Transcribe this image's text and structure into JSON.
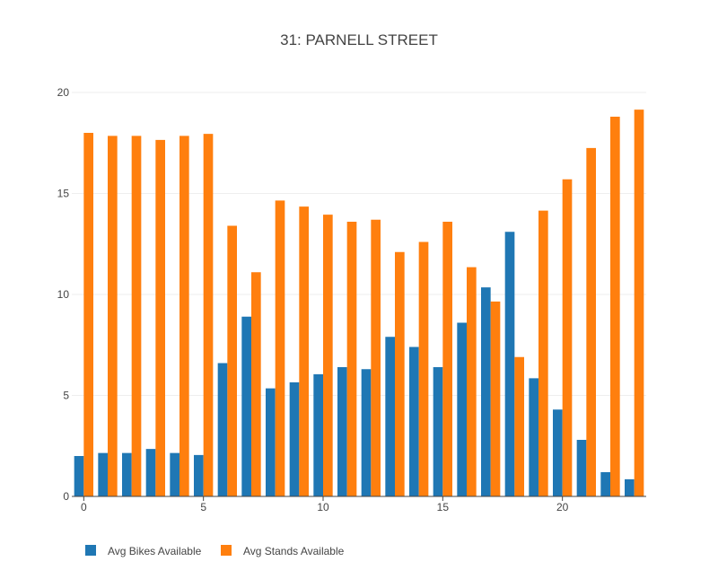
{
  "chart_data": {
    "type": "bar",
    "title": "31: PARNELL STREET",
    "xlabel": "",
    "ylabel": "",
    "x": [
      0,
      1,
      2,
      3,
      4,
      5,
      6,
      7,
      8,
      9,
      10,
      11,
      12,
      13,
      14,
      15,
      16,
      17,
      18,
      19,
      20,
      21,
      22,
      23
    ],
    "xticks": [
      0,
      5,
      10,
      15,
      20
    ],
    "yticks": [
      0,
      5,
      10,
      15,
      20
    ],
    "xlim": [
      -0.5,
      23.5
    ],
    "ylim": [
      0,
      20
    ],
    "grid": true,
    "legend_position": "bottom-left",
    "series": [
      {
        "name": "Avg Bikes Available",
        "color": "#1f77b4",
        "values": [
          2.0,
          2.15,
          2.15,
          2.35,
          2.15,
          2.05,
          6.6,
          8.9,
          5.35,
          5.65,
          6.05,
          6.4,
          6.3,
          7.9,
          7.4,
          6.4,
          8.6,
          10.35,
          13.1,
          5.85,
          4.3,
          2.8,
          1.2,
          0.85
        ]
      },
      {
        "name": "Avg Stands Available",
        "color": "#ff7f0e",
        "values": [
          18.0,
          17.85,
          17.85,
          17.65,
          17.85,
          17.95,
          13.4,
          11.1,
          14.65,
          14.35,
          13.95,
          13.6,
          13.7,
          12.1,
          12.6,
          13.6,
          11.35,
          9.65,
          6.9,
          14.15,
          15.7,
          17.25,
          18.8,
          19.15
        ]
      }
    ]
  }
}
